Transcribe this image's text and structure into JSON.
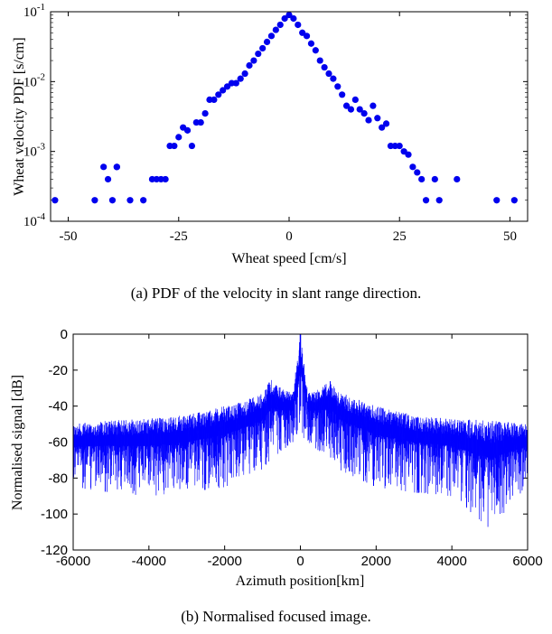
{
  "chart_data": [
    {
      "type": "scatter",
      "caption": "(a) PDF of the velocity in slant range direction.",
      "xlabel": "Wheat speed [cm/s]",
      "ylabel": "Wheat velocity PDF [s/cm]",
      "xlim": [
        -54,
        54
      ],
      "ylim": [
        0.0001,
        0.1
      ],
      "yscale": "log",
      "xticks": [
        -50,
        -25,
        0,
        25,
        50
      ],
      "xtick_labels": [
        "-50",
        "-25",
        "0",
        "25",
        "50"
      ],
      "yticks": [
        0.0001,
        0.001,
        0.01,
        0.1
      ],
      "ytick_labels": [
        "10-4",
        "10-3",
        "10-2",
        "10-1"
      ],
      "marker_color": "#0000ee",
      "series": [
        {
          "x": [
            -53,
            -44,
            -42,
            -41,
            -40,
            -39,
            -39,
            -36,
            -33,
            -31,
            -30,
            -29,
            -28,
            -27,
            -26,
            -25,
            -24,
            -23,
            -22,
            -21,
            -20,
            -19,
            -18,
            -17,
            -16,
            -15,
            -14,
            -13,
            -12,
            -11,
            -10,
            -9,
            -8,
            -7,
            -6,
            -5,
            -4,
            -3,
            -2,
            -1,
            0,
            1,
            2,
            3,
            4,
            5,
            6,
            7,
            8,
            9,
            10,
            11,
            12,
            13,
            14,
            15,
            16,
            17,
            18,
            19,
            20,
            21,
            22,
            23,
            24,
            25,
            26,
            27,
            28,
            29,
            30,
            31,
            33,
            34,
            38,
            47,
            51
          ],
          "y": [
            0.0002,
            0.0002,
            0.0006,
            0.0004,
            0.0002,
            0.0006,
            0.0006,
            0.0002,
            0.0002,
            0.0004,
            0.0004,
            0.0004,
            0.0004,
            0.0012,
            0.0012,
            0.0016,
            0.0022,
            0.002,
            0.0012,
            0.0026,
            0.0026,
            0.0035,
            0.0055,
            0.0055,
            0.0065,
            0.0075,
            0.0085,
            0.0095,
            0.0095,
            0.011,
            0.013,
            0.017,
            0.02,
            0.025,
            0.03,
            0.037,
            0.045,
            0.055,
            0.065,
            0.08,
            0.09,
            0.08,
            0.065,
            0.05,
            0.045,
            0.035,
            0.028,
            0.02,
            0.016,
            0.013,
            0.011,
            0.0085,
            0.0065,
            0.0045,
            0.004,
            0.0055,
            0.004,
            0.0035,
            0.0028,
            0.0045,
            0.003,
            0.0022,
            0.0025,
            0.0012,
            0.0012,
            0.0012,
            0.001,
            0.0009,
            0.0006,
            0.0005,
            0.0004,
            0.0002,
            0.0004,
            0.0002,
            0.0004,
            0.0002,
            0.0002
          ]
        }
      ]
    },
    {
      "type": "line",
      "caption": "(b) Normalised focused image.",
      "xlabel": "Azimuth position[km]",
      "ylabel": "Normalised signal [dB]",
      "xlim": [
        -6000,
        6000
      ],
      "ylim": [
        -120,
        0
      ],
      "xticks": [
        -6000,
        -4000,
        -2000,
        0,
        2000,
        4000,
        6000
      ],
      "xtick_labels": [
        "-6000",
        "-4000",
        "-2000",
        "0",
        "2000",
        "4000",
        "6000"
      ],
      "yticks": [
        0,
        -20,
        -40,
        -60,
        -80,
        -100,
        -120
      ],
      "ytick_labels": [
        "0",
        "-20",
        "-40",
        "-60",
        "-80",
        "-100",
        "-120"
      ],
      "line_color": "#0000ff",
      "envelope": {
        "x": [
          -6000,
          -5000,
          -4000,
          -3000,
          -2000,
          -1500,
          -1000,
          -800,
          -500,
          -200,
          0,
          200,
          500,
          800,
          1000,
          1500,
          2000,
          3000,
          4000,
          5000,
          6000
        ],
        "upper": [
          -50,
          -48,
          -47,
          -45,
          -40,
          -37,
          -33,
          -25,
          -30,
          -33,
          0,
          -33,
          -30,
          -25,
          -32,
          -36,
          -40,
          -45,
          -47,
          -48,
          -50
        ],
        "lower": [
          -85,
          -88,
          -90,
          -88,
          -85,
          -80,
          -75,
          -70,
          -65,
          -60,
          -56,
          -60,
          -65,
          -70,
          -75,
          -80,
          -85,
          -88,
          -90,
          -108,
          -85
        ]
      }
    }
  ]
}
